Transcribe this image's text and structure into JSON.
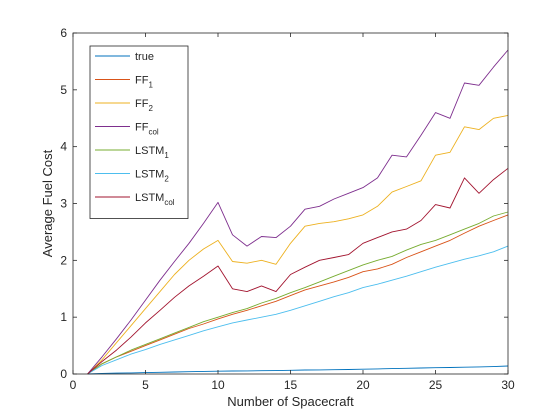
{
  "chart_data": {
    "type": "line",
    "xlabel": "Number of Spacecraft",
    "ylabel": "Average Fuel Cost",
    "xlim": [
      0,
      30
    ],
    "ylim": [
      0,
      6
    ],
    "xticks": [
      0,
      5,
      10,
      15,
      20,
      25,
      30
    ],
    "yticks": [
      0,
      1,
      2,
      3,
      4,
      5,
      6
    ],
    "grid": false,
    "legend_position": "top-left",
    "x": [
      1,
      2,
      3,
      4,
      5,
      6,
      7,
      8,
      9,
      10,
      11,
      12,
      13,
      14,
      15,
      16,
      17,
      18,
      19,
      20,
      21,
      22,
      23,
      24,
      25,
      26,
      27,
      28,
      29,
      30
    ],
    "series": [
      {
        "name": "true",
        "name_main": "true",
        "name_sub": "",
        "color": "#0072BD",
        "values": [
          0.0,
          0.01,
          0.015,
          0.02,
          0.025,
          0.03,
          0.035,
          0.04,
          0.045,
          0.05,
          0.052,
          0.055,
          0.058,
          0.06,
          0.065,
          0.07,
          0.072,
          0.075,
          0.08,
          0.085,
          0.09,
          0.095,
          0.1,
          0.105,
          0.11,
          0.115,
          0.12,
          0.125,
          0.13,
          0.14
        ]
      },
      {
        "name": "FF1",
        "name_main": "FF",
        "name_sub": "1",
        "color": "#D95319",
        "values": [
          0.0,
          0.18,
          0.3,
          0.4,
          0.5,
          0.6,
          0.7,
          0.8,
          0.88,
          0.97,
          1.05,
          1.12,
          1.2,
          1.28,
          1.38,
          1.48,
          1.55,
          1.62,
          1.7,
          1.8,
          1.85,
          1.93,
          2.05,
          2.15,
          2.25,
          2.35,
          2.48,
          2.6,
          2.7,
          2.8
        ]
      },
      {
        "name": "FF2",
        "name_main": "FF",
        "name_sub": "2",
        "color": "#EDB120",
        "values": [
          0.0,
          0.25,
          0.55,
          0.85,
          1.15,
          1.45,
          1.75,
          2.0,
          2.2,
          2.35,
          1.98,
          1.95,
          2.0,
          1.93,
          2.3,
          2.6,
          2.65,
          2.68,
          2.73,
          2.8,
          2.95,
          3.2,
          3.3,
          3.4,
          3.85,
          3.9,
          4.35,
          4.3,
          4.5,
          4.55
        ]
      },
      {
        "name": "FFcol",
        "name_main": "FF",
        "name_sub": "col",
        "color": "#7E2F8E",
        "values": [
          0.0,
          0.3,
          0.62,
          0.95,
          1.3,
          1.65,
          1.98,
          2.3,
          2.65,
          3.02,
          2.45,
          2.25,
          2.42,
          2.4,
          2.6,
          2.9,
          2.95,
          3.08,
          3.18,
          3.28,
          3.45,
          3.85,
          3.82,
          4.2,
          4.6,
          4.5,
          5.12,
          5.08,
          5.4,
          5.7
        ]
      },
      {
        "name": "LSTM1",
        "name_main": "LSTM",
        "name_sub": "1",
        "color": "#77AC30",
        "values": [
          0.0,
          0.18,
          0.3,
          0.42,
          0.52,
          0.62,
          0.72,
          0.82,
          0.92,
          1.0,
          1.08,
          1.15,
          1.25,
          1.33,
          1.43,
          1.52,
          1.62,
          1.72,
          1.82,
          1.92,
          2.0,
          2.07,
          2.18,
          2.28,
          2.35,
          2.45,
          2.55,
          2.65,
          2.78,
          2.85
        ]
      },
      {
        "name": "LSTM2",
        "name_main": "LSTM",
        "name_sub": "2",
        "color": "#4DBEEE",
        "values": [
          0.0,
          0.15,
          0.25,
          0.35,
          0.43,
          0.52,
          0.6,
          0.68,
          0.76,
          0.83,
          0.9,
          0.95,
          1.0,
          1.05,
          1.12,
          1.2,
          1.28,
          1.36,
          1.43,
          1.52,
          1.58,
          1.65,
          1.72,
          1.8,
          1.88,
          1.95,
          2.02,
          2.08,
          2.15,
          2.25
        ]
      },
      {
        "name": "LSTMcol",
        "name_main": "LSTM",
        "name_sub": "col",
        "color": "#A2142F",
        "values": [
          0.0,
          0.22,
          0.42,
          0.65,
          0.9,
          1.12,
          1.35,
          1.55,
          1.72,
          1.9,
          1.5,
          1.45,
          1.55,
          1.45,
          1.75,
          1.88,
          2.0,
          2.05,
          2.1,
          2.3,
          2.4,
          2.5,
          2.55,
          2.7,
          2.98,
          2.92,
          3.45,
          3.18,
          3.42,
          3.62
        ]
      }
    ]
  }
}
